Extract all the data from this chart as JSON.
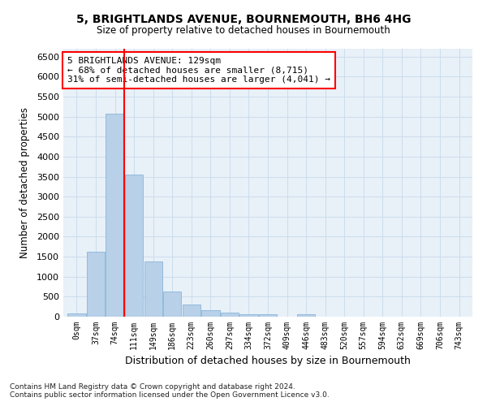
{
  "title1": "5, BRIGHTLANDS AVENUE, BOURNEMOUTH, BH6 4HG",
  "title2": "Size of property relative to detached houses in Bournemouth",
  "xlabel": "Distribution of detached houses by size in Bournemouth",
  "ylabel": "Number of detached properties",
  "bar_color": "#b8d0e8",
  "bar_edge_color": "#7aafd4",
  "grid_color": "#c8daea",
  "background_color": "#e8f0f8",
  "categories": [
    "0sqm",
    "37sqm",
    "74sqm",
    "111sqm",
    "149sqm",
    "186sqm",
    "223sqm",
    "260sqm",
    "297sqm",
    "334sqm",
    "372sqm",
    "409sqm",
    "446sqm",
    "483sqm",
    "520sqm",
    "557sqm",
    "594sqm",
    "632sqm",
    "669sqm",
    "706sqm",
    "743sqm"
  ],
  "values": [
    75,
    1620,
    5080,
    3560,
    1390,
    620,
    310,
    155,
    100,
    55,
    60,
    0,
    55,
    0,
    0,
    0,
    0,
    0,
    0,
    0,
    0
  ],
  "property_line_x": 2.5,
  "annotation_text": "5 BRIGHTLANDS AVENUE: 129sqm\n← 68% of detached houses are smaller (8,715)\n31% of semi-detached houses are larger (4,041) →",
  "annotation_box_color": "white",
  "annotation_edge_color": "red",
  "vline_color": "red",
  "ylim": [
    0,
    6700
  ],
  "yticks": [
    0,
    500,
    1000,
    1500,
    2000,
    2500,
    3000,
    3500,
    4000,
    4500,
    5000,
    5500,
    6000,
    6500
  ],
  "footnote1": "Contains HM Land Registry data © Crown copyright and database right 2024.",
  "footnote2": "Contains public sector information licensed under the Open Government Licence v3.0."
}
